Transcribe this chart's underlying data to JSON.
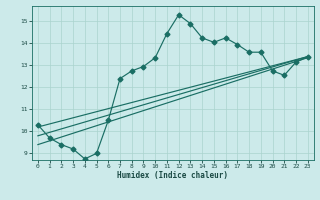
{
  "xlabel": "Humidex (Indice chaleur)",
  "bg_color": "#cceaea",
  "line_color": "#1a6e64",
  "grid_color": "#aad4ce",
  "xlim": [
    -0.5,
    23.5
  ],
  "ylim": [
    8.7,
    15.7
  ],
  "xticks": [
    0,
    1,
    2,
    3,
    4,
    5,
    6,
    7,
    8,
    9,
    10,
    11,
    12,
    13,
    14,
    15,
    16,
    17,
    18,
    19,
    20,
    21,
    22,
    23
  ],
  "yticks": [
    9,
    10,
    11,
    12,
    13,
    14,
    15
  ],
  "line1_x": [
    0,
    1,
    2,
    3,
    4,
    5,
    6,
    7,
    8,
    9,
    10,
    11,
    12,
    13,
    14,
    15,
    16,
    17,
    18,
    19,
    20,
    21,
    22,
    23
  ],
  "line1_y": [
    10.3,
    9.7,
    9.4,
    9.2,
    8.75,
    9.0,
    10.5,
    12.4,
    12.75,
    12.95,
    13.35,
    14.45,
    15.3,
    14.9,
    14.25,
    14.05,
    14.25,
    13.95,
    13.6,
    13.6,
    12.75,
    12.55,
    13.15,
    13.4
  ],
  "line2_x": [
    0,
    23
  ],
  "line2_y": [
    9.4,
    13.35
  ],
  "line3_x": [
    0,
    23
  ],
  "line3_y": [
    9.8,
    13.4
  ],
  "line4_x": [
    0,
    23
  ],
  "line4_y": [
    10.2,
    13.4
  ]
}
